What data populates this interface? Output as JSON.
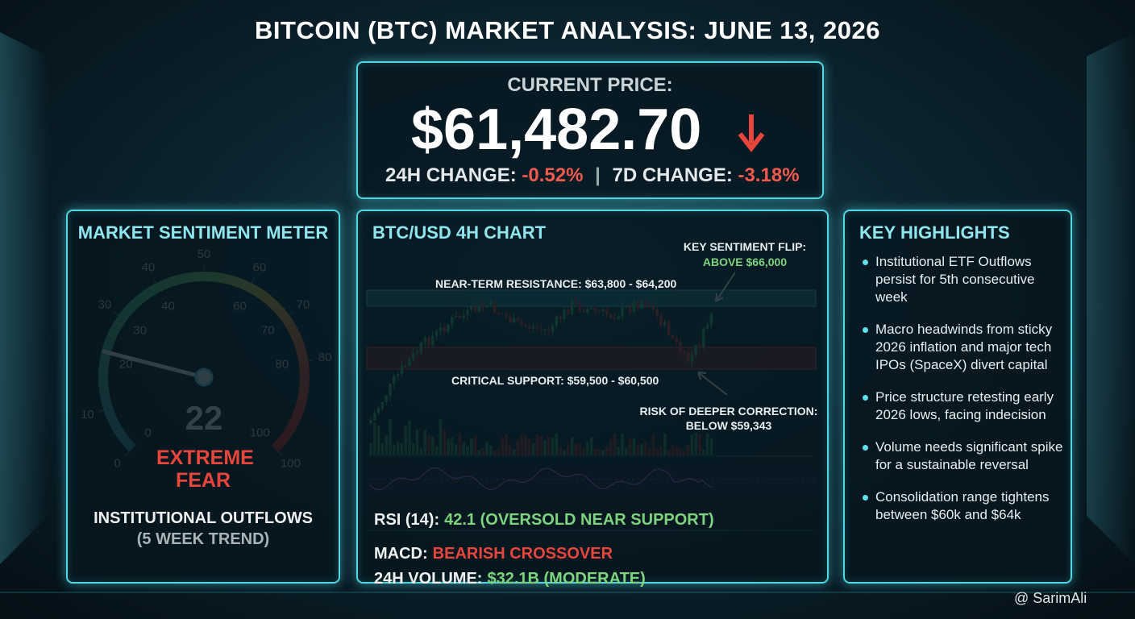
{
  "header": {
    "title": "BITCOIN (BTC) MARKET ANALYSIS: JUNE 13, 2026"
  },
  "price": {
    "label": "CURRENT PRICE:",
    "value": "$61,482.70",
    "change_24h_label": "24H CHANGE:",
    "change_24h": "-0.52%",
    "change_7d_label": "7D CHANGE:",
    "change_7d": "-3.18%"
  },
  "sentiment": {
    "title": "MARKET SENTIMENT METER",
    "gauge": {
      "value": 22,
      "min": 0,
      "max": 100,
      "outer_ticks": [
        0,
        10,
        30,
        40,
        50,
        60,
        70,
        80,
        100
      ],
      "inner_ticks": [
        0,
        20,
        30,
        40,
        60,
        70,
        80,
        100
      ]
    },
    "rating": "EXTREME FEAR",
    "note": "INSTITUTIONAL OUTFLOWS",
    "note_sub": "(5 WEEK TREND)"
  },
  "chart": {
    "title": "BTC/USD 4H CHART",
    "flip_label": "KEY SENTIMENT FLIP:",
    "flip_value": "ABOVE $66,000",
    "resistance": "NEAR-TERM RESISTANCE: $63,800 - $64,200",
    "support": "CRITICAL SUPPORT: $59,500 - $60,500",
    "risk_label": "RISK OF DEEPER CORRECTION:",
    "risk_value": "BELOW $59,343",
    "indicators": [
      {
        "label": "RSI (14):",
        "value": "42.1 (OVERSOLD NEAR SUPPORT)",
        "color": "#7ed37e"
      },
      {
        "label": "MACD:",
        "value": "BEARISH CROSSOVER",
        "color": "#e8453c"
      },
      {
        "label": "24H VOLUME:",
        "value": "$32.1B (MODERATE)",
        "color": "#7ed37e"
      }
    ]
  },
  "highlights": {
    "title": "KEY HIGHLIGHTS",
    "items": [
      "Institutional ETF Outflows persist for 5th consecutive week",
      "Macro headwinds from sticky 2026 inflation and major tech IPOs (SpaceX) divert capital",
      "Price structure retesting early 2026 lows, facing indecision",
      "Volume needs significant spike for a sustainable reversal",
      "Consolidation range tightens between $60k and $64k"
    ]
  },
  "footer": {
    "credit": "@ SarimAli"
  }
}
